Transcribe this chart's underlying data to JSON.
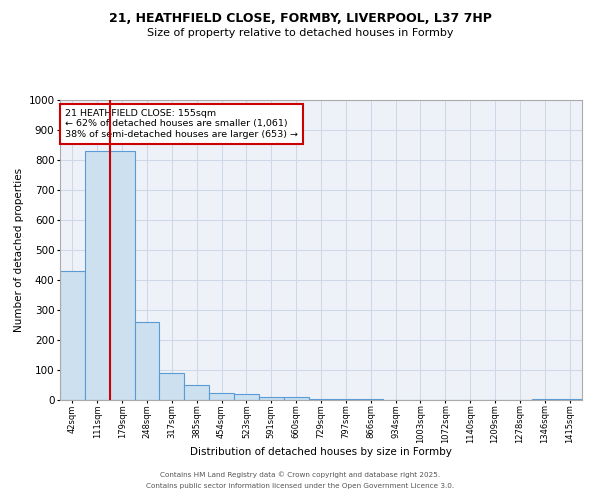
{
  "title_line1": "21, HEATHFIELD CLOSE, FORMBY, LIVERPOOL, L37 7HP",
  "title_line2": "Size of property relative to detached houses in Formby",
  "xlabel": "Distribution of detached houses by size in Formby",
  "ylabel": "Number of detached properties",
  "bins": [
    "42sqm",
    "111sqm",
    "179sqm",
    "248sqm",
    "317sqm",
    "385sqm",
    "454sqm",
    "523sqm",
    "591sqm",
    "660sqm",
    "729sqm",
    "797sqm",
    "866sqm",
    "934sqm",
    "1003sqm",
    "1072sqm",
    "1140sqm",
    "1209sqm",
    "1278sqm",
    "1346sqm",
    "1415sqm"
  ],
  "values": [
    430,
    830,
    830,
    260,
    90,
    50,
    25,
    20,
    10,
    10,
    3,
    2,
    2,
    1,
    1,
    1,
    0,
    0,
    0,
    5,
    5
  ],
  "bar_color": "#cce0f0",
  "bar_edge_color": "#5b9bd5",
  "grid_color": "#d0d8e8",
  "background_color": "#eef2f8",
  "subject_line_color": "#cc0000",
  "subject_bin_index": 2,
  "annotation_text": "21 HEATHFIELD CLOSE: 155sqm\n← 62% of detached houses are smaller (1,061)\n38% of semi-detached houses are larger (653) →",
  "annotation_box_color": "#cc0000",
  "ylim": [
    0,
    1000
  ],
  "footer_line1": "Contains HM Land Registry data © Crown copyright and database right 2025.",
  "footer_line2": "Contains public sector information licensed under the Open Government Licence 3.0."
}
